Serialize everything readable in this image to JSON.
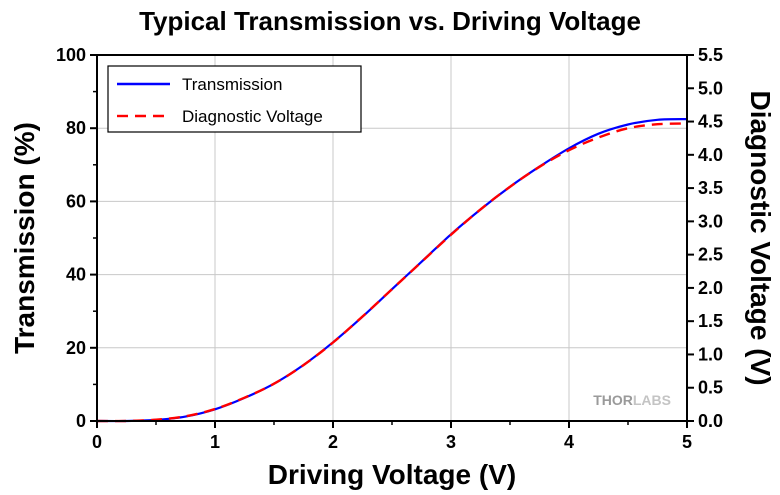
{
  "chart_data": {
    "type": "line",
    "title": "Typical Transmission vs. Driving Voltage",
    "xlabel": "Driving Voltage (V)",
    "ylabel": "Transmission (%)",
    "y2label": "Diagnostic Voltage (V)",
    "xlim": [
      0,
      5
    ],
    "ylim": [
      0,
      100
    ],
    "y2lim": [
      0,
      5.5
    ],
    "x_ticks": [
      "0",
      "1",
      "2",
      "3",
      "4",
      "5"
    ],
    "y_ticks": [
      "0",
      "20",
      "40",
      "60",
      "80",
      "100"
    ],
    "y2_ticks": [
      "0.0",
      "0.5",
      "1.0",
      "1.5",
      "2.0",
      "2.5",
      "3.0",
      "3.5",
      "4.0",
      "4.5",
      "5.0",
      "5.5"
    ],
    "grid": true,
    "legend_position": "top-left",
    "watermark": "THORLABS",
    "series": [
      {
        "name": "Transmission",
        "axis": "left",
        "style": "solid",
        "color": "#0000ff",
        "x": [
          0,
          0.25,
          0.5,
          0.75,
          1.0,
          1.25,
          1.5,
          1.75,
          2.0,
          2.25,
          2.5,
          2.75,
          3.0,
          3.25,
          3.5,
          3.75,
          4.0,
          4.25,
          4.5,
          4.75,
          5.0
        ],
        "y": [
          0,
          0,
          0.3,
          1.2,
          3.2,
          6.3,
          10.2,
          15.3,
          21.5,
          28.5,
          36.0,
          43.5,
          51.0,
          57.8,
          64.0,
          69.5,
          74.5,
          78.5,
          81.0,
          82.3,
          82.5
        ]
      },
      {
        "name": "Diagnostic Voltage",
        "axis": "right",
        "style": "dashed",
        "color": "#ff0000",
        "x": [
          0,
          0.25,
          0.5,
          0.75,
          1.0,
          1.25,
          1.5,
          1.75,
          2.0,
          2.25,
          2.5,
          2.75,
          3.0,
          3.25,
          3.5,
          3.75,
          4.0,
          4.25,
          4.5,
          4.75,
          5.0
        ],
        "y": [
          0,
          0,
          0.02,
          0.07,
          0.18,
          0.35,
          0.56,
          0.84,
          1.18,
          1.57,
          1.98,
          2.39,
          2.8,
          3.18,
          3.52,
          3.82,
          4.07,
          4.26,
          4.4,
          4.46,
          4.47
        ]
      }
    ]
  }
}
